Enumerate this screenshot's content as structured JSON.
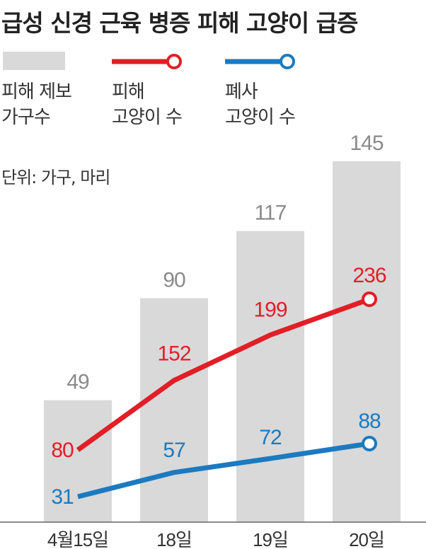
{
  "title": "급성 신경 근육 병증 피해 고양이 급증",
  "legend": [
    {
      "line1": "피해 제보",
      "line2": "가구수",
      "kind": "bar"
    },
    {
      "line1": "피해",
      "line2": "고양이 수",
      "kind": "line-red"
    },
    {
      "line1": "폐사",
      "line2": "고양이 수",
      "kind": "line-blue"
    }
  ],
  "unit_label": "단위: 가구, 마리",
  "colors": {
    "bar": "#d9d9d9",
    "red": "#e21e26",
    "blue": "#1b7ac0",
    "text": "#333333",
    "bar_label": "#8a8a8a",
    "axis": "#666666"
  },
  "chart_data": {
    "type": "bar",
    "categories": [
      "4월15일",
      "18일",
      "19일",
      "20일"
    ],
    "series": [
      {
        "name": "피해 제보 가구수",
        "type": "bar",
        "values": [
          49,
          90,
          117,
          145
        ]
      },
      {
        "name": "피해 고양이 수",
        "type": "line",
        "values": [
          80,
          152,
          199,
          236
        ]
      },
      {
        "name": "폐사 고양이 수",
        "type": "line",
        "values": [
          31,
          57,
          72,
          88
        ]
      }
    ]
  }
}
